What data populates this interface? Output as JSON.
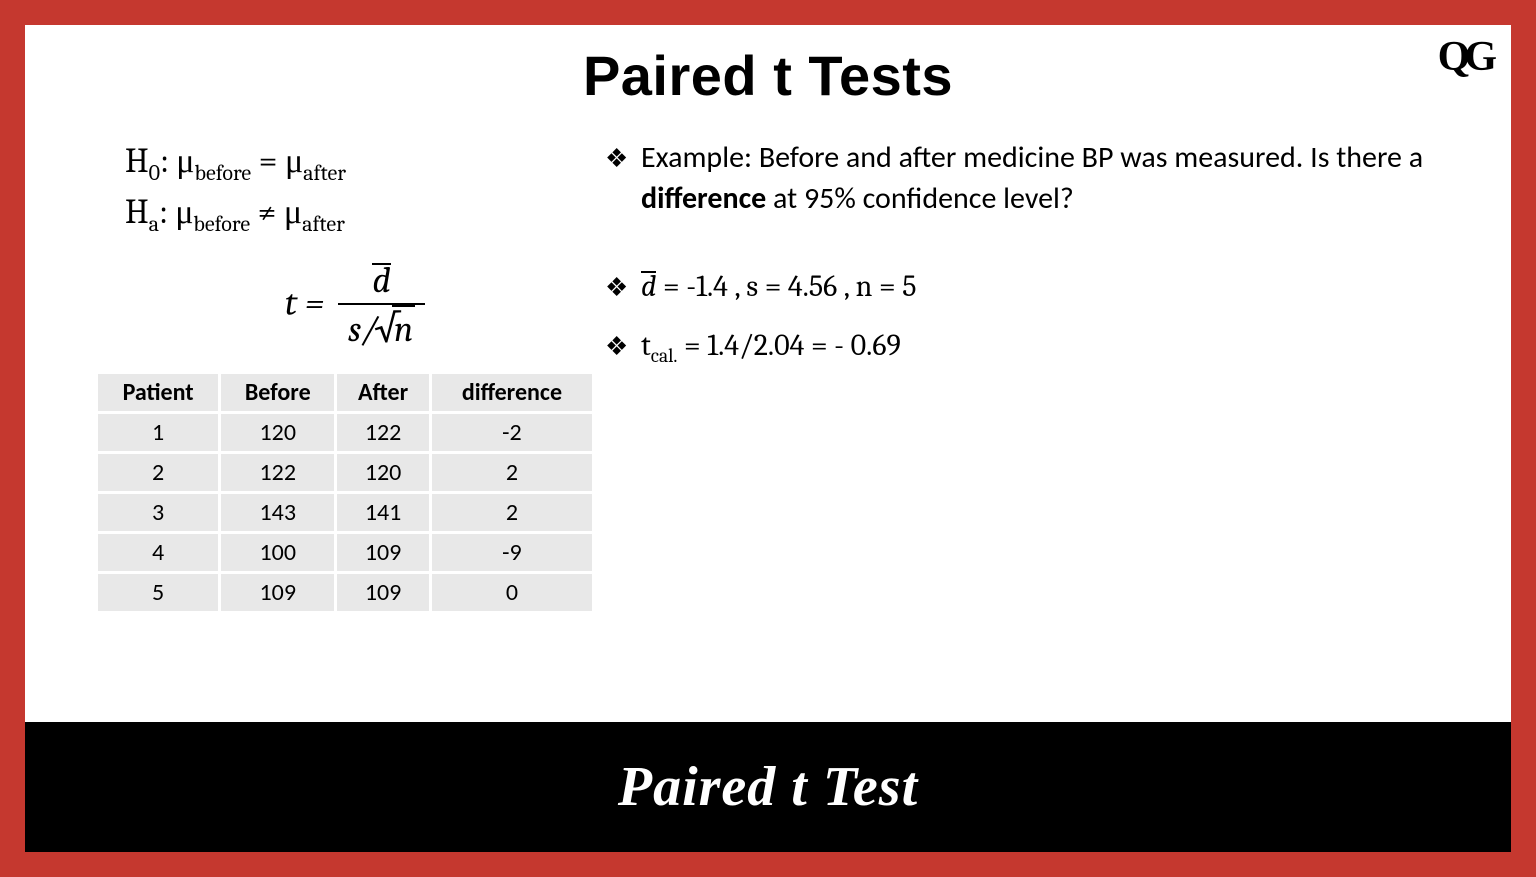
{
  "logo": "QG",
  "title": "Paired t Tests",
  "hypotheses": {
    "h0_label": "H",
    "h0_sub": "0",
    "ha_label": "H",
    "ha_sub": "a",
    "mu": "μ",
    "before_sub": "before",
    "after_sub": "after",
    "eq": "=",
    "neq": "≠"
  },
  "formula": {
    "lhs": "t =",
    "numerator": "d",
    "den_s": "s",
    "den_slash": "/",
    "den_n": "n"
  },
  "table": {
    "columns": [
      "Patient",
      "Before",
      "After",
      "difference"
    ],
    "rows": [
      [
        "1",
        "120",
        "122",
        "-2"
      ],
      [
        "2",
        "122",
        "120",
        "2"
      ],
      [
        "3",
        "143",
        "141",
        "2"
      ],
      [
        "4",
        "100",
        "109",
        "-9"
      ],
      [
        "5",
        "109",
        "109",
        "0"
      ]
    ],
    "header_bg": "#e8e8e8",
    "row_bg": "#e8e8e8",
    "border_color": "#ffffff"
  },
  "bullets": {
    "b1_pre": "Example: Before and after medicine BP was measured. Is there a ",
    "b1_bold": "difference",
    "b1_post": " at 95% confidence level?",
    "b2_dbar": "d",
    "b2_rest": " = -1.4 , s = 4.56 , n = 5",
    "b3_t": "t",
    "b3_sub": "cal.",
    "b3_rest": " =  1.4/2.04 = - 0.69"
  },
  "footer": "Paired t Test",
  "marker": "❖",
  "colors": {
    "frame": "#c5382f",
    "slide_bg": "#ffffff",
    "text": "#000000",
    "footer_bg": "#000000",
    "footer_text": "#ffffff"
  }
}
